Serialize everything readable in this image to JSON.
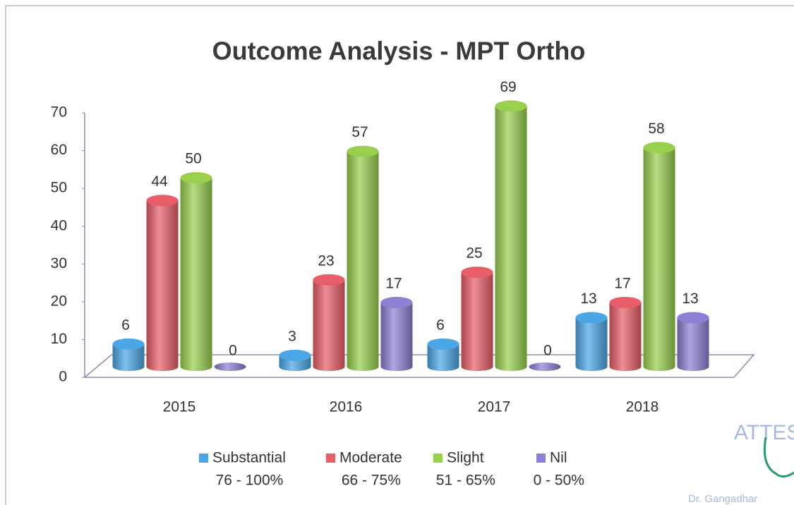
{
  "chart_data": {
    "type": "bar3d",
    "title": "Outcome Analysis - MPT Ortho",
    "categories": [
      "2015",
      "2016",
      "2017",
      "2018"
    ],
    "series": [
      {
        "name": "Substantial",
        "range": "76 - 100%",
        "color": "#4ba6e6",
        "values": [
          6,
          3,
          6,
          13
        ]
      },
      {
        "name": "Moderate",
        "range": "66 - 75%",
        "color": "#e85e68",
        "values": [
          44,
          23,
          25,
          17
        ]
      },
      {
        "name": "Slight",
        "range": "51 - 65%",
        "color": "#98cf4c",
        "values": [
          50,
          57,
          69,
          58
        ]
      },
      {
        "name": "Nil",
        "range": "0 - 50%",
        "color": "#8b80d2",
        "values": [
          0,
          17,
          0,
          13
        ]
      }
    ],
    "ylim": [
      0,
      70
    ],
    "yticks": [
      0,
      10,
      20,
      30,
      40,
      50,
      60,
      70
    ],
    "legend": "bottom",
    "stamp": {
      "text": "ATTES",
      "signature": "Dr. Gangadhar"
    }
  }
}
